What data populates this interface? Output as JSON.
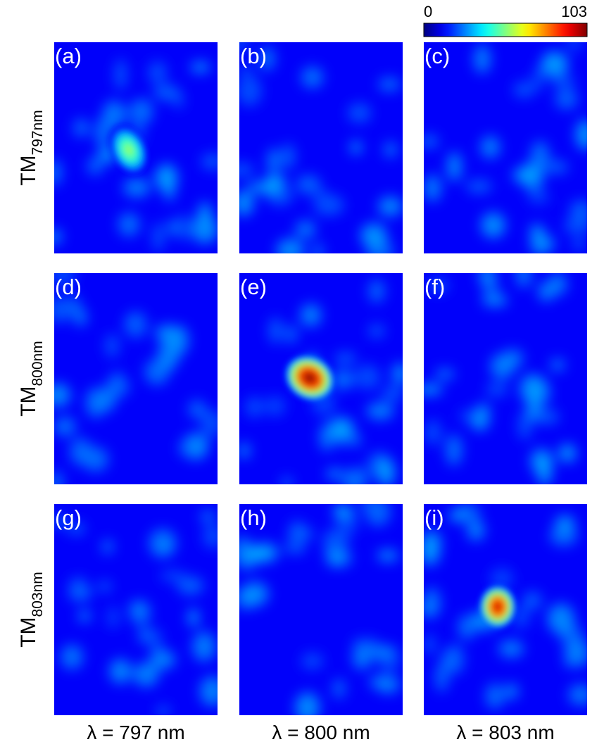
{
  "chart_data": {
    "type": "heatmap",
    "clim": [
      0,
      103
    ],
    "cticks": [
      0,
      103
    ],
    "row_labels": [
      {
        "base": "TM",
        "sub": "797nm"
      },
      {
        "base": "TM",
        "sub": "800nm"
      },
      {
        "base": "TM",
        "sub": "803nm"
      }
    ],
    "col_labels": [
      "λ = 797 nm",
      "λ = 800 nm",
      "λ = 803 nm"
    ],
    "panels": [
      {
        "label": "(a)",
        "peak": 55
      },
      {
        "label": "(b)"
      },
      {
        "label": "(c)"
      },
      {
        "label": "(d)"
      },
      {
        "label": "(e)",
        "peak": 103
      },
      {
        "label": "(f)"
      },
      {
        "label": "(g)"
      },
      {
        "label": "(h)"
      },
      {
        "label": "(i)",
        "peak": 95
      }
    ]
  }
}
